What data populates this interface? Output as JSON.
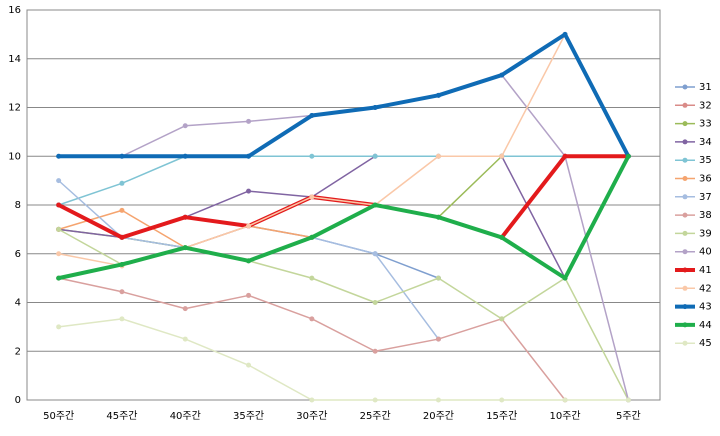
{
  "chart_data": {
    "type": "line",
    "categories": [
      "50주간",
      "45주간",
      "40주간",
      "35주간",
      "30주간",
      "25주간",
      "20주간",
      "15주간",
      "10주간",
      "5주간"
    ],
    "ylim": [
      0,
      16
    ],
    "yticks": [
      0,
      2,
      4,
      6,
      8,
      10,
      12,
      14,
      16
    ],
    "grid": true,
    "legend": "right",
    "series": [
      {
        "name": "31",
        "color": "#7f9fcf",
        "width": 1.5,
        "values": [
          8,
          6.67,
          6.25,
          7.14,
          6.67,
          6,
          5,
          null,
          null,
          null
        ]
      },
      {
        "name": "32",
        "color": "#d98b88",
        "width": 1.5,
        "values": [
          null,
          null,
          null,
          null,
          null,
          null,
          10,
          10,
          10,
          10
        ]
      },
      {
        "name": "33",
        "color": "#9bbb59",
        "width": 1.5,
        "values": [
          7,
          6.67,
          6.25,
          5.71,
          6.67,
          8,
          7.5,
          10,
          null,
          10
        ]
      },
      {
        "name": "34",
        "color": "#8064a2",
        "width": 1.5,
        "values": [
          7,
          6.67,
          7.5,
          8.57,
          8.33,
          10,
          null,
          10,
          5,
          10
        ]
      },
      {
        "name": "35",
        "color": "#7fc4d4",
        "width": 1.5,
        "values": [
          8,
          8.89,
          10,
          10,
          10,
          10,
          10,
          10,
          10,
          10
        ]
      },
      {
        "name": "36",
        "color": "#f5a46f",
        "width": 1.5,
        "values": [
          7,
          7.78,
          6.25,
          7.14,
          6.67,
          null,
          null,
          null,
          null,
          null
        ]
      },
      {
        "name": "37",
        "color": "#a6bde0",
        "width": 1.5,
        "values": [
          9,
          6.67,
          6.25,
          5.71,
          6.67,
          6,
          2.5,
          null,
          null,
          null
        ]
      },
      {
        "name": "38",
        "color": "#d9a09e",
        "width": 1.5,
        "values": [
          5,
          4.44,
          3.75,
          4.29,
          3.33,
          2,
          2.5,
          3.33,
          0,
          null
        ]
      },
      {
        "name": "39",
        "color": "#c3d69b",
        "width": 1.5,
        "values": [
          7,
          5.56,
          6.25,
          5.71,
          5,
          4,
          5,
          3.33,
          5,
          0
        ]
      },
      {
        "name": "40",
        "color": "#b3a2c7",
        "width": 1.5,
        "values": [
          null,
          10,
          11.25,
          11.43,
          11.67,
          12,
          12.5,
          13.33,
          10,
          0
        ]
      },
      {
        "name": "41",
        "color": "#e31a1c",
        "width": 4,
        "values": [
          8,
          6.67,
          7.5,
          7.14,
          8.33,
          8,
          null,
          6.67,
          10,
          10
        ]
      },
      {
        "name": "42",
        "color": "#fac8a8",
        "width": 1.5,
        "values": [
          6,
          5.5,
          6.25,
          7.14,
          8.33,
          8,
          10,
          10,
          15,
          10
        ]
      },
      {
        "name": "43",
        "color": "#0f6bb5",
        "width": 4,
        "values": [
          10,
          10,
          10,
          10,
          11.67,
          12,
          12.5,
          13.33,
          15,
          10
        ]
      },
      {
        "name": "44",
        "color": "#1fae4b",
        "width": 4,
        "values": [
          5,
          5.56,
          6.25,
          5.71,
          6.67,
          8,
          7.5,
          6.67,
          5,
          10
        ]
      },
      {
        "name": "45",
        "color": "#dfe8c4",
        "width": 1.5,
        "values": [
          3,
          3.33,
          2.5,
          1.43,
          0,
          0,
          0,
          0,
          0,
          0
        ]
      }
    ]
  }
}
